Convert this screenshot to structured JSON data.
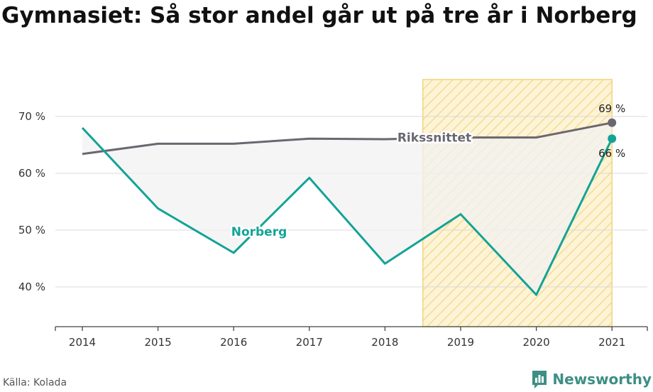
{
  "title": "Gymnasiet: Så stor andel går ut på tre år i Norberg",
  "source": "Källa: Kolada",
  "brand": {
    "name": "Newsworthy",
    "icon": "newsworthy-logo-icon"
  },
  "colors": {
    "norberg": "#14a396",
    "riks": "#6b6770",
    "highlight_fill": "#fdf3d6",
    "highlight_stroke": "#f1d47a",
    "area_fill": "#f2f2f2",
    "brand": "#3d8f85"
  },
  "chart_data": {
    "type": "line",
    "x": [
      "2014",
      "2015",
      "2016",
      "2017",
      "2018",
      "2019",
      "2020",
      "2021"
    ],
    "y_ticks": [
      40,
      50,
      60,
      70
    ],
    "y_tick_labels": [
      "40 %",
      "50 %",
      "60 %",
      "70 %"
    ],
    "ylim": [
      33,
      76.5
    ],
    "grid": true,
    "highlight_period": [
      "2019",
      "2021"
    ],
    "series": [
      {
        "name": "Rikssnittet",
        "key": "riks",
        "values": [
          63.4,
          65.2,
          65.2,
          66.1,
          66.0,
          66.3,
          66.3,
          68.9
        ],
        "end_label": "69 %"
      },
      {
        "name": "Norberg",
        "key": "norberg",
        "values": [
          68.0,
          53.8,
          46.0,
          59.2,
          44.1,
          52.8,
          38.6,
          66.1
        ],
        "end_label": "66 %"
      }
    ]
  }
}
